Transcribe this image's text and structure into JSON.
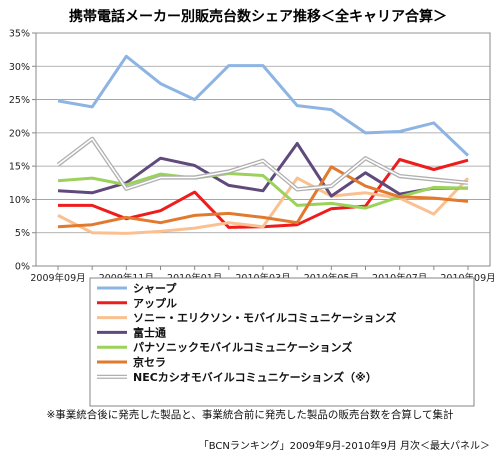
{
  "chart_data": {
    "type": "line",
    "title": "携帯電話メーカー別販売台数シェア推移＜全キャリア合算＞",
    "ylim": [
      0,
      35
    ],
    "y_ticks": [
      "0%",
      "5%",
      "10%",
      "15%",
      "20%",
      "25%",
      "30%",
      "35%"
    ],
    "y_tick_values": [
      0,
      5,
      10,
      15,
      20,
      25,
      30,
      35
    ],
    "x": [
      "2009-09",
      "2009-10",
      "2009-11",
      "2009-12",
      "2010-01",
      "2010-02",
      "2010-03",
      "2010-04",
      "2010-05",
      "2010-06",
      "2010-07",
      "2010-08",
      "2010-09"
    ],
    "x_tick_labels": [
      "2009年09月",
      "2009年11月",
      "2010年01月",
      "2010年03月",
      "2010年05月",
      "2010年07月",
      "2010年09月"
    ],
    "x_tick_indices": [
      0,
      2,
      4,
      6,
      8,
      10,
      12
    ],
    "grid": true,
    "legend_position": "below",
    "series": [
      {
        "name": "シャープ",
        "color": "#8db4e2",
        "values": [
          24.8,
          23.9,
          31.5,
          27.4,
          25.0,
          30.1,
          30.1,
          24.1,
          23.5,
          20.0,
          20.2,
          21.5,
          16.6
        ]
      },
      {
        "name": "アップル",
        "color": "#ee1c1c",
        "values": [
          9.1,
          9.1,
          7.1,
          8.3,
          11.1,
          5.8,
          5.9,
          6.2,
          8.6,
          9.0,
          16.0,
          14.5,
          15.9
        ]
      },
      {
        "name": "ソニー・エリクソン・モバイルコミュニケーションズ",
        "color": "#fac090",
        "values": [
          7.6,
          5.0,
          4.9,
          5.2,
          5.7,
          6.5,
          5.9,
          13.2,
          10.5,
          11.0,
          10.2,
          7.8,
          13.2
        ]
      },
      {
        "name": "富士通",
        "color": "#604a7b",
        "values": [
          11.3,
          11.0,
          12.5,
          16.2,
          15.1,
          12.1,
          11.3,
          18.4,
          10.5,
          14.0,
          10.8,
          11.7,
          11.7
        ]
      },
      {
        "name": "パナソニックモバイルコミュニケーションズ",
        "color": "#9bd25a",
        "values": [
          12.8,
          13.2,
          12.2,
          13.8,
          13.2,
          13.9,
          13.6,
          9.1,
          9.4,
          8.7,
          10.4,
          11.8,
          11.7
        ]
      },
      {
        "name": "京セラ",
        "color": "#e17a2e",
        "values": [
          5.9,
          6.2,
          7.3,
          6.5,
          7.6,
          7.9,
          7.3,
          6.5,
          14.9,
          12.0,
          10.4,
          10.2,
          9.7
        ]
      },
      {
        "name": "NECカシオモバイルコミュニケーションズ（※）",
        "color": "#b0b0b0",
        "double": true,
        "values": [
          15.2,
          19.1,
          11.6,
          13.3,
          13.3,
          14.2,
          15.8,
          11.5,
          12.0,
          16.2,
          13.5,
          13.0,
          12.5
        ]
      }
    ],
    "note": "※事業統合後に発売した製品と、事業統合前に発売した製品の販売台数を合算して集計",
    "source": "「BCNランキング」2009年9月-2010年9月  月次＜最大パネル＞"
  }
}
